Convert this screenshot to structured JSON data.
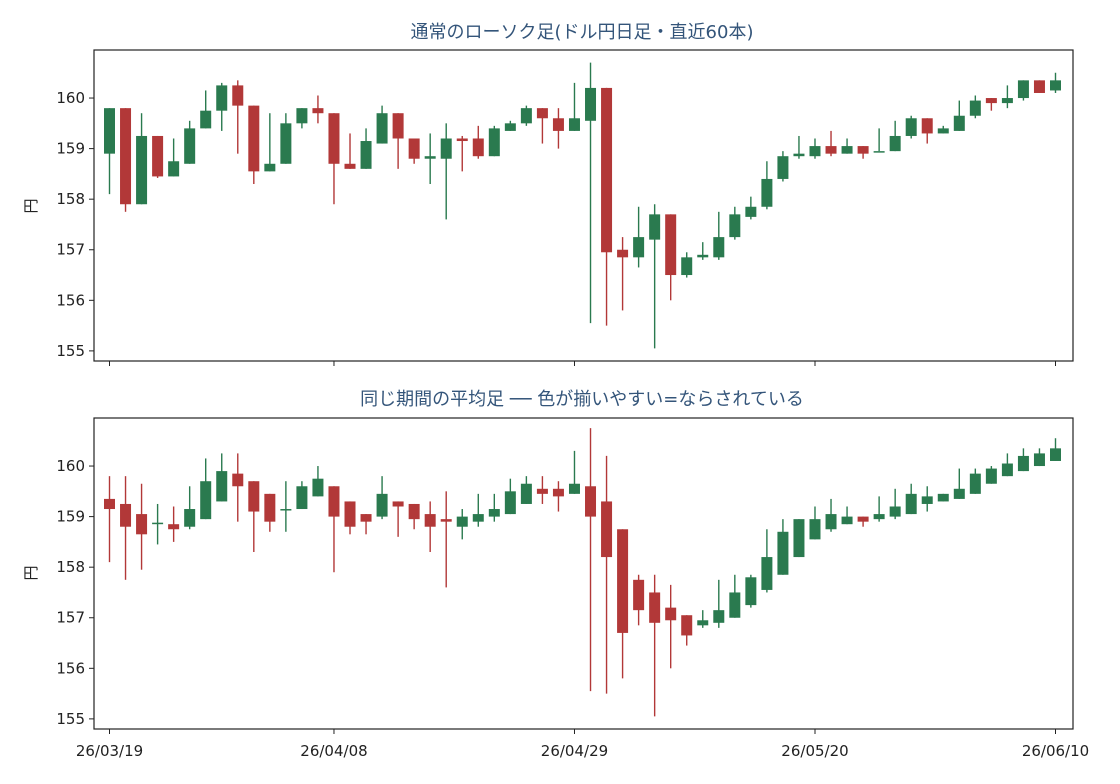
{
  "colors": {
    "up": "#2a7a4f",
    "down": "#b23838",
    "title": "#34557a",
    "axis": "#222222"
  },
  "chart_data": [
    {
      "type": "candlestick",
      "title": "通常のローソク足(ドル円日足・直近60本)",
      "ylabel": "円",
      "ylim": [
        154.8,
        160.95
      ],
      "yticks": [
        "155",
        "156",
        "157",
        "158",
        "159",
        "160"
      ],
      "xticks": [
        {
          "i": 0,
          "label": "26/03/19"
        },
        {
          "i": 14,
          "label": "26/04/08"
        },
        {
          "i": 29,
          "label": "26/04/29"
        },
        {
          "i": 44,
          "label": "26/05/20"
        },
        {
          "i": 59,
          "label": "26/06/10"
        }
      ],
      "show_xtick_labels": false,
      "ohlc": [
        [
          158.9,
          159.8,
          158.1,
          159.8
        ],
        [
          159.8,
          159.8,
          157.75,
          157.9
        ],
        [
          157.9,
          159.7,
          157.9,
          159.25
        ],
        [
          159.25,
          159.25,
          158.42,
          158.45
        ],
        [
          158.45,
          159.2,
          158.45,
          158.75
        ],
        [
          158.7,
          159.55,
          158.7,
          159.4
        ],
        [
          159.4,
          160.15,
          159.4,
          159.75
        ],
        [
          159.75,
          160.3,
          159.35,
          160.25
        ],
        [
          160.25,
          160.35,
          158.9,
          159.85
        ],
        [
          159.85,
          159.85,
          158.3,
          158.55
        ],
        [
          158.55,
          159.7,
          158.55,
          158.7
        ],
        [
          158.7,
          159.7,
          158.7,
          159.5
        ],
        [
          159.5,
          159.8,
          159.4,
          159.8
        ],
        [
          159.8,
          160.05,
          159.5,
          159.7
        ],
        [
          159.7,
          159.7,
          157.9,
          158.7
        ],
        [
          158.7,
          159.3,
          158.6,
          158.6
        ],
        [
          158.6,
          159.4,
          158.6,
          159.15
        ],
        [
          159.1,
          159.85,
          159.1,
          159.7
        ],
        [
          159.7,
          159.7,
          158.6,
          159.2
        ],
        [
          159.2,
          159.2,
          158.7,
          158.8
        ],
        [
          158.8,
          159.3,
          158.3,
          158.85
        ],
        [
          158.8,
          159.5,
          157.6,
          159.2
        ],
        [
          159.2,
          159.25,
          158.55,
          159.15
        ],
        [
          159.2,
          159.45,
          158.8,
          158.85
        ],
        [
          158.85,
          159.45,
          158.85,
          159.4
        ],
        [
          159.35,
          159.55,
          159.35,
          159.5
        ],
        [
          159.5,
          159.85,
          159.45,
          159.8
        ],
        [
          159.8,
          159.8,
          159.1,
          159.6
        ],
        [
          159.6,
          159.8,
          159.0,
          159.35
        ],
        [
          159.35,
          160.3,
          159.35,
          159.6
        ],
        [
          159.55,
          160.7,
          155.55,
          160.2
        ],
        [
          160.2,
          160.2,
          155.5,
          156.95
        ],
        [
          157.0,
          157.25,
          155.8,
          156.85
        ],
        [
          156.85,
          157.85,
          156.65,
          157.25
        ],
        [
          157.2,
          157.9,
          155.05,
          157.7
        ],
        [
          157.7,
          157.7,
          156.0,
          156.5
        ],
        [
          156.5,
          156.95,
          156.45,
          156.85
        ],
        [
          156.85,
          157.15,
          156.8,
          156.9
        ],
        [
          156.85,
          157.75,
          156.8,
          157.25
        ],
        [
          157.25,
          157.85,
          157.2,
          157.7
        ],
        [
          157.65,
          158.05,
          157.6,
          157.85
        ],
        [
          157.85,
          158.75,
          157.8,
          158.4
        ],
        [
          158.4,
          158.95,
          158.35,
          158.85
        ],
        [
          158.85,
          159.25,
          158.8,
          158.9
        ],
        [
          158.85,
          159.2,
          158.8,
          159.05
        ],
        [
          159.05,
          159.35,
          158.85,
          158.9
        ],
        [
          158.9,
          159.2,
          158.9,
          159.05
        ],
        [
          159.05,
          159.05,
          158.8,
          158.9
        ],
        [
          158.95,
          159.4,
          158.95,
          158.95
        ],
        [
          158.95,
          159.55,
          158.95,
          159.25
        ],
        [
          159.25,
          159.65,
          159.2,
          159.6
        ],
        [
          159.6,
          159.6,
          159.1,
          159.3
        ],
        [
          159.3,
          159.45,
          159.3,
          159.4
        ],
        [
          159.35,
          159.95,
          159.35,
          159.65
        ],
        [
          159.65,
          160.05,
          159.6,
          159.95
        ],
        [
          160.0,
          160.0,
          159.75,
          159.9
        ],
        [
          159.9,
          160.25,
          159.8,
          160.0
        ],
        [
          160.0,
          160.35,
          159.95,
          160.35
        ],
        [
          160.35,
          160.35,
          160.1,
          160.1
        ],
        [
          160.15,
          160.5,
          160.1,
          160.35
        ]
      ]
    },
    {
      "type": "heikin-ashi",
      "title": "同じ期間の平均足 ── 色が揃いやすい=ならされている",
      "ylabel": "円",
      "ylim": [
        154.8,
        160.95
      ],
      "yticks": [
        "155",
        "156",
        "157",
        "158",
        "159",
        "160"
      ],
      "xticks": [
        {
          "i": 0,
          "label": "26/03/19"
        },
        {
          "i": 14,
          "label": "26/04/08"
        },
        {
          "i": 29,
          "label": "26/04/29"
        },
        {
          "i": 44,
          "label": "26/05/20"
        },
        {
          "i": 59,
          "label": "26/06/10"
        }
      ],
      "show_xtick_labels": true,
      "ohlc": [
        [
          159.35,
          159.8,
          158.1,
          159.15
        ],
        [
          159.25,
          159.8,
          157.75,
          158.8
        ],
        [
          159.05,
          159.65,
          157.95,
          158.65
        ],
        [
          158.85,
          159.25,
          158.45,
          158.88
        ],
        [
          158.85,
          159.2,
          158.5,
          158.75
        ],
        [
          158.8,
          159.6,
          158.75,
          159.15
        ],
        [
          158.95,
          160.15,
          158.95,
          159.7
        ],
        [
          159.3,
          160.25,
          159.3,
          159.9
        ],
        [
          159.85,
          160.25,
          158.9,
          159.6
        ],
        [
          159.7,
          159.7,
          158.3,
          159.1
        ],
        [
          159.45,
          159.45,
          158.7,
          158.9
        ],
        [
          159.15,
          159.7,
          158.7,
          159.15
        ],
        [
          159.15,
          159.7,
          159.15,
          159.6
        ],
        [
          159.4,
          160.0,
          159.4,
          159.75
        ],
        [
          159.6,
          159.6,
          157.9,
          159.0
        ],
        [
          159.3,
          159.3,
          158.65,
          158.8
        ],
        [
          159.05,
          159.05,
          158.65,
          158.9
        ],
        [
          159.0,
          159.8,
          158.95,
          159.45
        ],
        [
          159.3,
          159.3,
          158.6,
          159.2
        ],
        [
          159.25,
          159.25,
          158.75,
          158.95
        ],
        [
          159.05,
          159.3,
          158.3,
          158.8
        ],
        [
          158.95,
          159.5,
          157.6,
          158.9
        ],
        [
          158.8,
          159.15,
          158.55,
          159.0
        ],
        [
          158.9,
          159.45,
          158.8,
          159.05
        ],
        [
          159.0,
          159.45,
          158.9,
          159.15
        ],
        [
          159.05,
          159.75,
          159.05,
          159.5
        ],
        [
          159.25,
          159.8,
          159.25,
          159.65
        ],
        [
          159.55,
          159.8,
          159.25,
          159.45
        ],
        [
          159.55,
          159.7,
          159.1,
          159.4
        ],
        [
          159.45,
          160.3,
          159.45,
          159.65
        ],
        [
          159.6,
          160.75,
          155.55,
          159.0
        ],
        [
          159.3,
          160.2,
          155.5,
          158.2
        ],
        [
          158.75,
          158.75,
          155.8,
          156.7
        ],
        [
          157.75,
          157.85,
          156.85,
          157.15
        ],
        [
          157.5,
          157.85,
          155.05,
          156.9
        ],
        [
          157.2,
          157.65,
          156.0,
          156.95
        ],
        [
          157.05,
          157.05,
          156.45,
          156.65
        ],
        [
          156.85,
          157.15,
          156.8,
          156.95
        ],
        [
          156.9,
          157.75,
          156.8,
          157.15
        ],
        [
          157.0,
          157.85,
          157.0,
          157.5
        ],
        [
          157.25,
          157.85,
          157.2,
          157.8
        ],
        [
          157.55,
          158.75,
          157.5,
          158.2
        ],
        [
          157.85,
          158.95,
          157.85,
          158.7
        ],
        [
          158.2,
          158.95,
          158.2,
          158.95
        ],
        [
          158.55,
          159.2,
          158.55,
          158.95
        ],
        [
          158.75,
          159.35,
          158.7,
          159.05
        ],
        [
          158.85,
          159.2,
          158.85,
          159.0
        ],
        [
          159.0,
          159.0,
          158.8,
          158.9
        ],
        [
          158.95,
          159.4,
          158.9,
          159.05
        ],
        [
          159.0,
          159.55,
          158.95,
          159.2
        ],
        [
          159.05,
          159.65,
          159.05,
          159.45
        ],
        [
          159.25,
          159.6,
          159.1,
          159.4
        ],
        [
          159.3,
          159.45,
          159.3,
          159.45
        ],
        [
          159.35,
          159.95,
          159.35,
          159.55
        ],
        [
          159.45,
          159.95,
          159.45,
          159.85
        ],
        [
          159.65,
          160.0,
          159.65,
          159.95
        ],
        [
          159.8,
          160.25,
          159.8,
          160.05
        ],
        [
          159.9,
          160.35,
          159.9,
          160.2
        ],
        [
          160.0,
          160.35,
          160.0,
          160.25
        ],
        [
          160.1,
          160.55,
          160.1,
          160.35
        ]
      ]
    }
  ]
}
